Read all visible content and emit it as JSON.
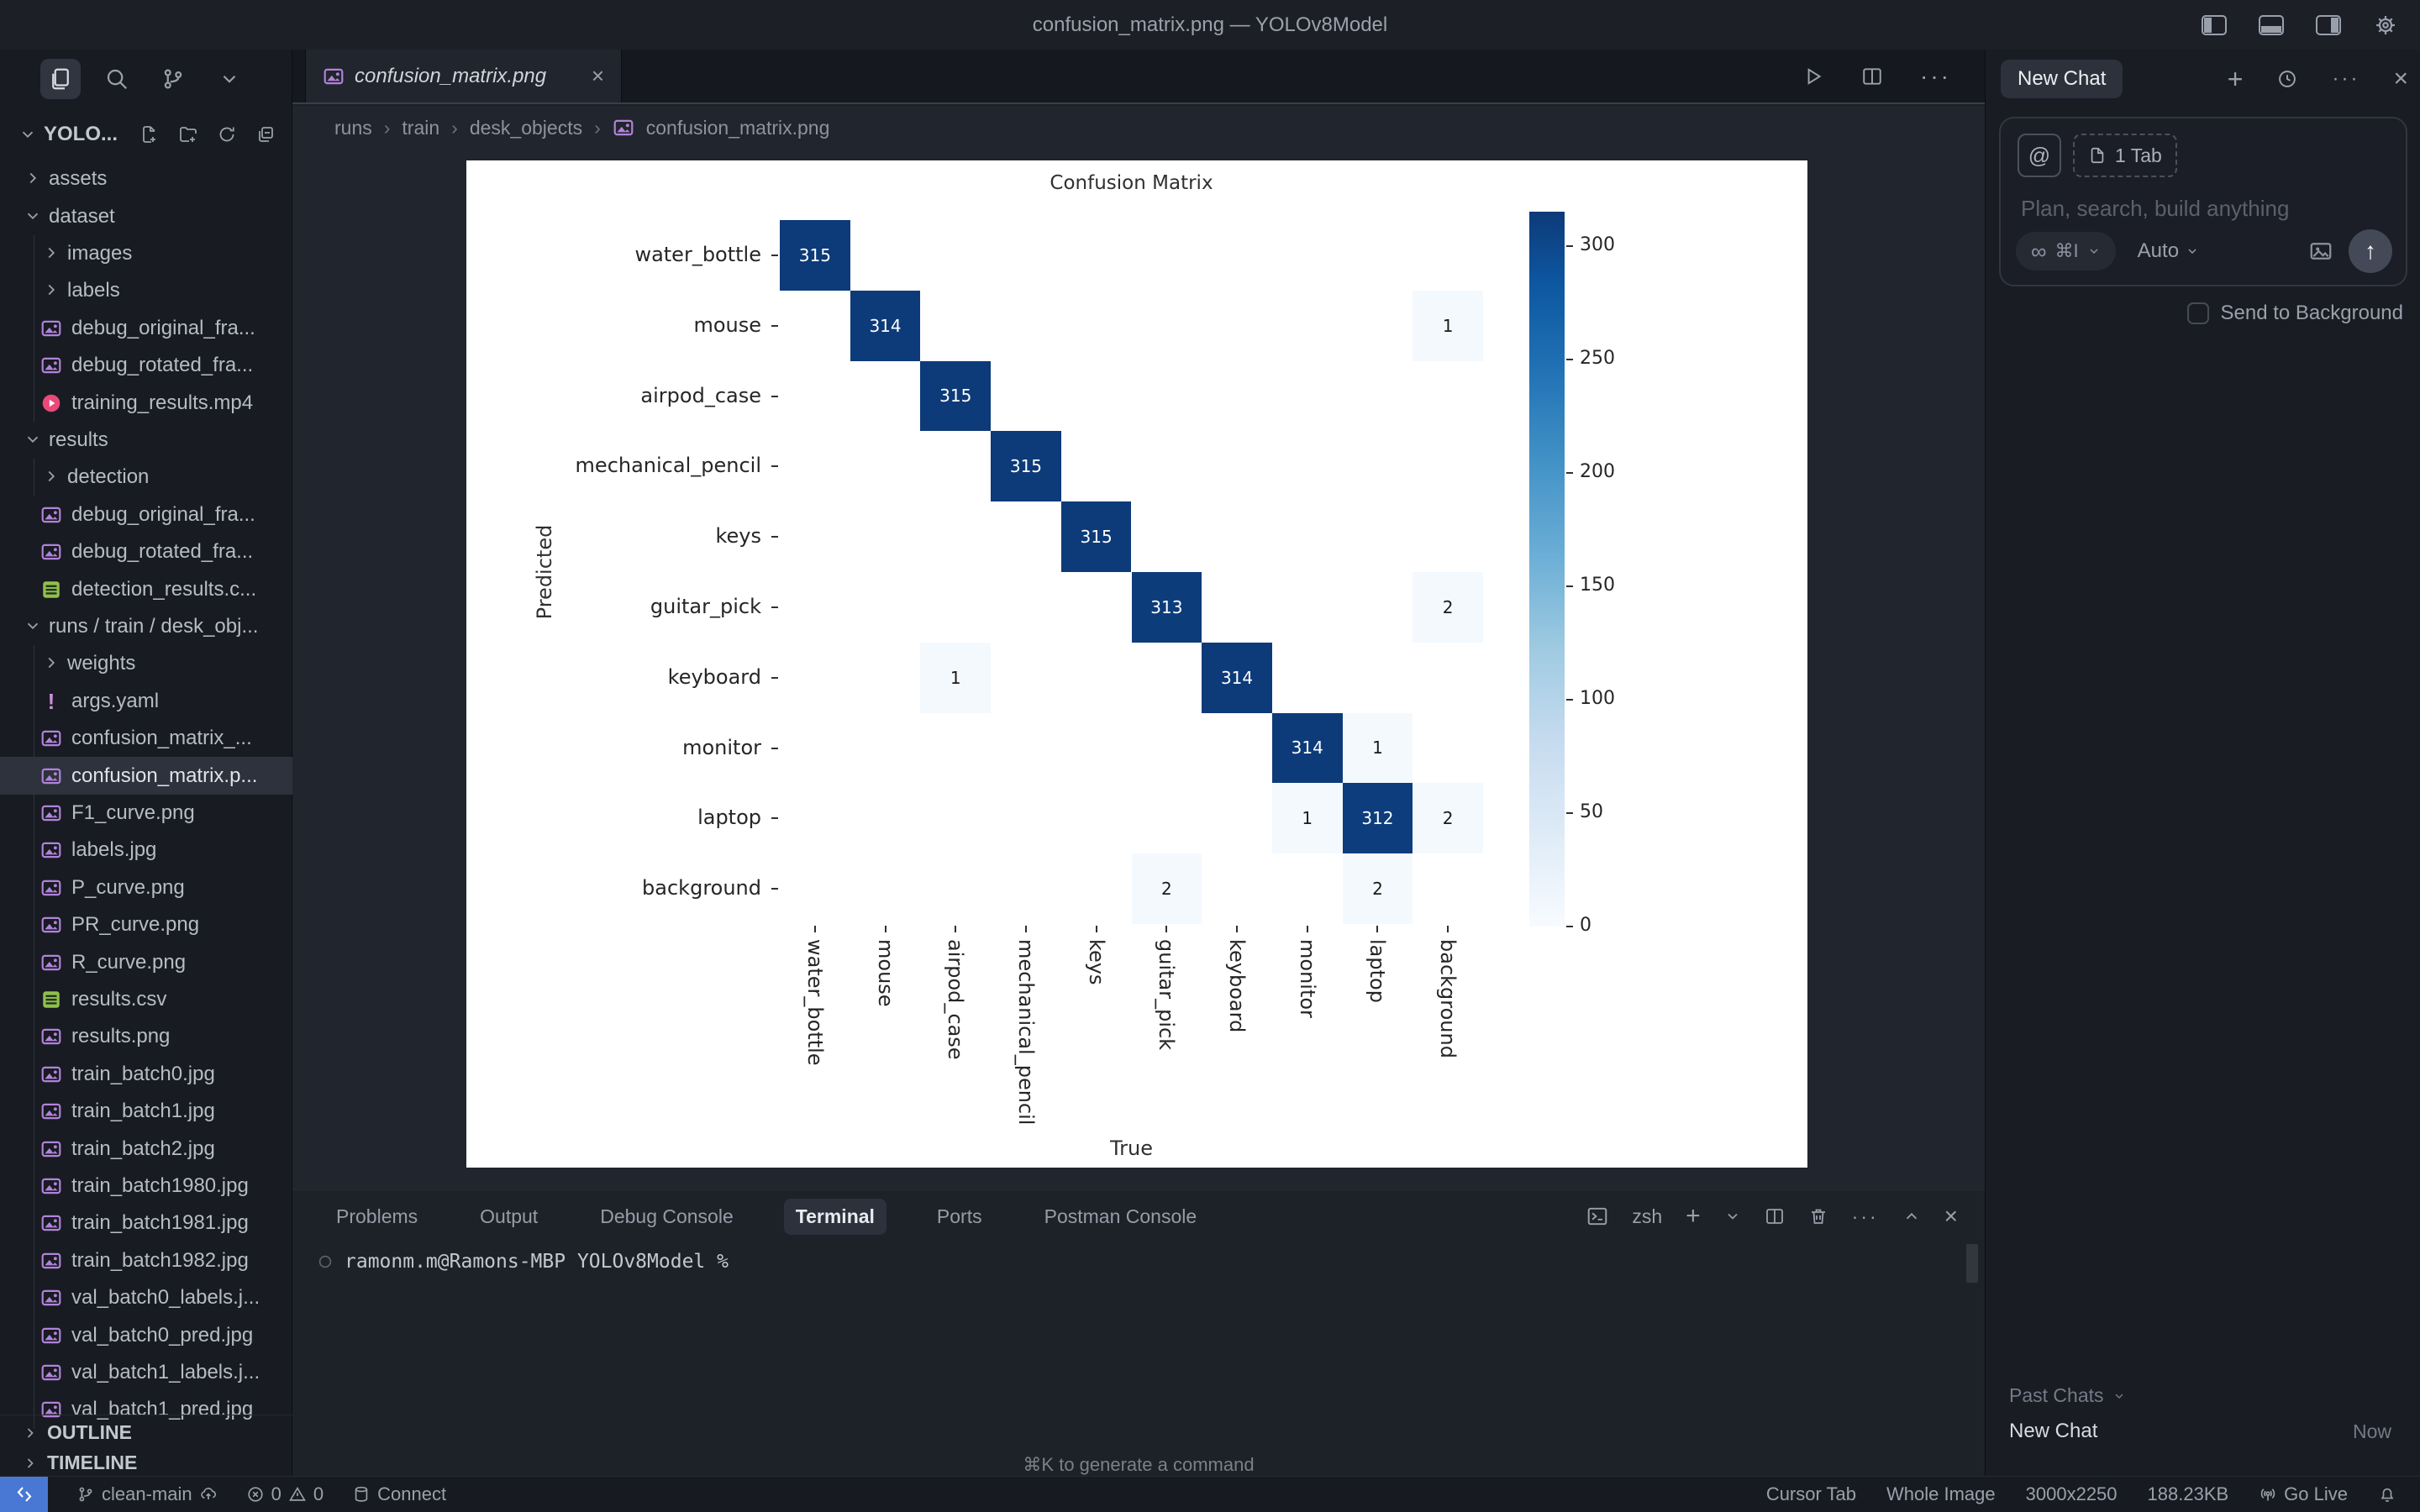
{
  "title_bar": {
    "title": "confusion_matrix.png — YOLOv8Model"
  },
  "explorer": {
    "title": "YOLO...",
    "outline": "OUTLINE",
    "timeline": "TIMELINE",
    "tree": [
      {
        "label": "assets",
        "kind": "folder",
        "depth": 0,
        "expanded": false
      },
      {
        "label": "dataset",
        "kind": "folder",
        "depth": 0,
        "expanded": true
      },
      {
        "label": "images",
        "kind": "folder",
        "depth": 1,
        "expanded": false
      },
      {
        "label": "labels",
        "kind": "folder",
        "depth": 1,
        "expanded": false
      },
      {
        "label": "debug_original_fra...",
        "kind": "file",
        "icon": "image",
        "depth": 1
      },
      {
        "label": "debug_rotated_fra...",
        "kind": "file",
        "icon": "image",
        "depth": 1
      },
      {
        "label": "training_results.mp4",
        "kind": "file",
        "icon": "video",
        "depth": 1
      },
      {
        "label": "results",
        "kind": "folder",
        "depth": 0,
        "expanded": true
      },
      {
        "label": "detection",
        "kind": "folder",
        "depth": 1,
        "expanded": false
      },
      {
        "label": "debug_original_fra...",
        "kind": "file",
        "icon": "image",
        "depth": 0
      },
      {
        "label": "debug_rotated_fra...",
        "kind": "file",
        "icon": "image",
        "depth": 0
      },
      {
        "label": "detection_results.c...",
        "kind": "file",
        "icon": "csv",
        "depth": 0
      },
      {
        "label": "runs / train / desk_obj...",
        "kind": "folder",
        "depth": 0,
        "expanded": true
      },
      {
        "label": "weights",
        "kind": "folder",
        "depth": 1,
        "expanded": false
      },
      {
        "label": "args.yaml",
        "kind": "file",
        "icon": "yaml",
        "depth": 1
      },
      {
        "label": "confusion_matrix_...",
        "kind": "file",
        "icon": "image",
        "depth": 1
      },
      {
        "label": "confusion_matrix.p...",
        "kind": "file",
        "icon": "image",
        "depth": 1,
        "selected": true
      },
      {
        "label": "F1_curve.png",
        "kind": "file",
        "icon": "image",
        "depth": 1
      },
      {
        "label": "labels.jpg",
        "kind": "file",
        "icon": "image",
        "depth": 1
      },
      {
        "label": "P_curve.png",
        "kind": "file",
        "icon": "image",
        "depth": 1
      },
      {
        "label": "PR_curve.png",
        "kind": "file",
        "icon": "image",
        "depth": 1
      },
      {
        "label": "R_curve.png",
        "kind": "file",
        "icon": "image",
        "depth": 1
      },
      {
        "label": "results.csv",
        "kind": "file",
        "icon": "csv",
        "depth": 1
      },
      {
        "label": "results.png",
        "kind": "file",
        "icon": "image",
        "depth": 1
      },
      {
        "label": "train_batch0.jpg",
        "kind": "file",
        "icon": "image",
        "depth": 1
      },
      {
        "label": "train_batch1.jpg",
        "kind": "file",
        "icon": "image",
        "depth": 1
      },
      {
        "label": "train_batch2.jpg",
        "kind": "file",
        "icon": "image",
        "depth": 1
      },
      {
        "label": "train_batch1980.jpg",
        "kind": "file",
        "icon": "image",
        "depth": 1
      },
      {
        "label": "train_batch1981.jpg",
        "kind": "file",
        "icon": "image",
        "depth": 1
      },
      {
        "label": "train_batch1982.jpg",
        "kind": "file",
        "icon": "image",
        "depth": 1
      },
      {
        "label": "val_batch0_labels.j...",
        "kind": "file",
        "icon": "image",
        "depth": 1
      },
      {
        "label": "val_batch0_pred.jpg",
        "kind": "file",
        "icon": "image",
        "depth": 1
      },
      {
        "label": "val_batch1_labels.j...",
        "kind": "file",
        "icon": "image",
        "depth": 1
      },
      {
        "label": "val_batch1_pred.jpg",
        "kind": "file",
        "icon": "image",
        "depth": 1
      }
    ]
  },
  "editor": {
    "tab": "confusion_matrix.png",
    "breadcrumbs": [
      "runs",
      "train",
      "desk_objects",
      "confusion_matrix.png"
    ]
  },
  "chart_data": {
    "type": "heatmap",
    "title": "Confusion Matrix",
    "xlabel": "True",
    "ylabel": "Predicted",
    "categories": [
      "water_bottle",
      "mouse",
      "airpod_case",
      "mechanical_pencil",
      "keys",
      "guitar_pick",
      "keyboard",
      "monitor",
      "laptop",
      "background"
    ],
    "matrix": [
      [
        315,
        0,
        0,
        0,
        0,
        0,
        0,
        0,
        0,
        0
      ],
      [
        0,
        314,
        0,
        0,
        0,
        0,
        0,
        0,
        0,
        1
      ],
      [
        0,
        0,
        315,
        0,
        0,
        0,
        0,
        0,
        0,
        0
      ],
      [
        0,
        0,
        0,
        315,
        0,
        0,
        0,
        0,
        0,
        0
      ],
      [
        0,
        0,
        0,
        0,
        315,
        0,
        0,
        0,
        0,
        0
      ],
      [
        0,
        0,
        0,
        0,
        0,
        313,
        0,
        0,
        0,
        2
      ],
      [
        0,
        0,
        1,
        0,
        0,
        0,
        314,
        0,
        0,
        0
      ],
      [
        0,
        0,
        0,
        0,
        0,
        0,
        0,
        314,
        1,
        0
      ],
      [
        0,
        0,
        0,
        0,
        0,
        0,
        0,
        1,
        312,
        2
      ],
      [
        0,
        0,
        0,
        0,
        0,
        2,
        0,
        0,
        2,
        0
      ]
    ],
    "vmax": 315,
    "colormap": "Blues",
    "colorbar_ticks": [
      0,
      50,
      100,
      150,
      200,
      250,
      300
    ],
    "legend_position": "right",
    "grid": false
  },
  "terminal": {
    "tabs": [
      "Problems",
      "Output",
      "Debug Console",
      "Terminal",
      "Ports",
      "Postman Console"
    ],
    "active_tab": "Terminal",
    "shell_label": "zsh",
    "prompt": "ramonm.m@Ramons-MBP YOLOv8Model %",
    "hint": "⌘K to generate a command"
  },
  "chat": {
    "title": "New Chat",
    "context_chip": "1 Tab",
    "placeholder": "Plan, search, build anything",
    "shortcut": "⌘I",
    "model": "Auto",
    "background_label": "Send to Background",
    "past_chats_label": "Past Chats",
    "history_item": {
      "label": "New Chat",
      "time": "Now"
    }
  },
  "status": {
    "branch": "clean-main",
    "errors": "0",
    "warnings": "0",
    "connect": "Connect",
    "cursor_tab": "Cursor Tab",
    "image_mode": "Whole Image",
    "dimensions": "3000x2250",
    "file_size": "188.23KB",
    "go_live": "Go Live"
  }
}
